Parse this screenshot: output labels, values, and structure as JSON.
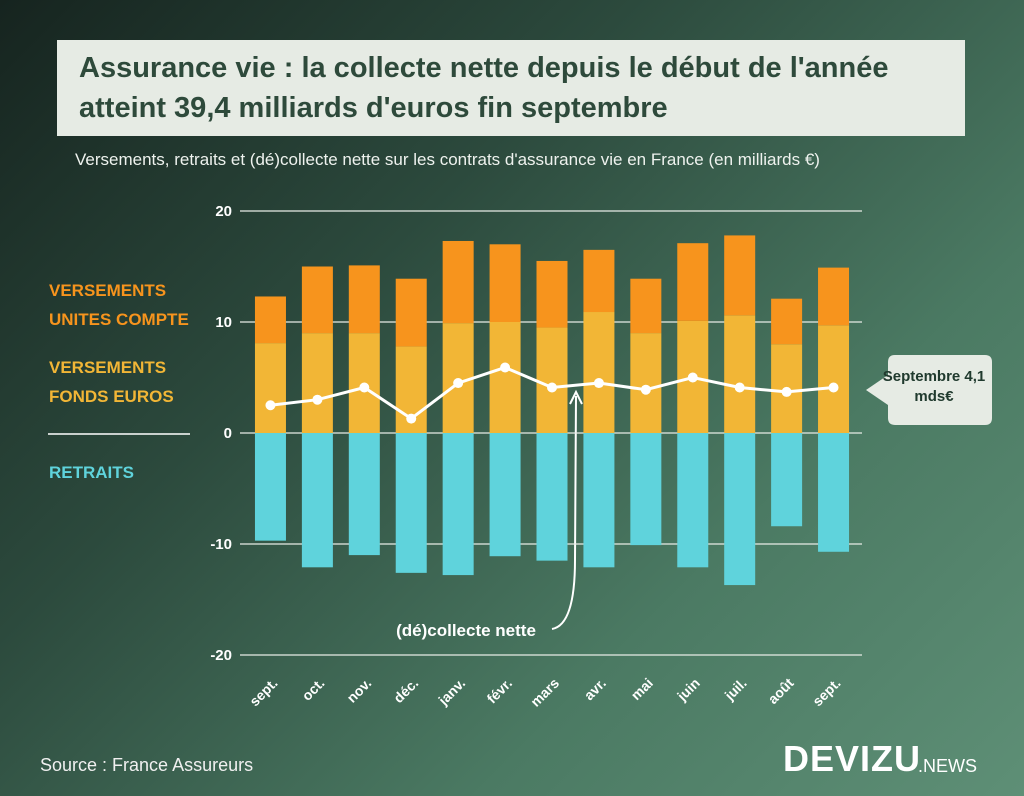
{
  "chart_data": {
    "type": "bar",
    "title": "Assurance vie : la collecte nette depuis le début de l'année atteint 39,4 milliards d'euros fin septembre",
    "subtitle": "Versements, retraits et (dé)collecte nette sur les contrats d'assurance vie en France (en milliards €)",
    "categories": [
      "sept.",
      "oct.",
      "nov.",
      "déc.",
      "janv.",
      "févr.",
      "mars",
      "avr.",
      "mai",
      "juin",
      "juil.",
      "août",
      "sept."
    ],
    "stacked": true,
    "series": [
      {
        "name": "VERSEMENTS FONDS EUROS",
        "color": "#f2b636",
        "values": [
          8.1,
          9.0,
          9.0,
          7.8,
          9.9,
          10.0,
          9.5,
          10.9,
          9.0,
          10.1,
          10.6,
          8.0,
          9.7
        ]
      },
      {
        "name": "VERSEMENTS UNITES COMPTE",
        "color": "#f7941d",
        "values": [
          4.2,
          6.0,
          6.1,
          6.1,
          7.4,
          7.0,
          6.0,
          5.6,
          4.9,
          7.0,
          7.2,
          4.1,
          5.2
        ]
      },
      {
        "name": "RETRAITS",
        "color": "#5fd3dc",
        "values": [
          -9.7,
          -12.1,
          -11.0,
          -12.6,
          -12.8,
          -11.1,
          -11.5,
          -12.1,
          -10.1,
          -12.1,
          -13.7,
          -8.4,
          -10.7
        ]
      },
      {
        "name": "(dé)collecte nette",
        "type": "line",
        "color": "#ffffff",
        "values": [
          2.5,
          3.0,
          4.1,
          1.3,
          4.5,
          5.9,
          4.1,
          4.5,
          3.9,
          5.0,
          4.1,
          3.7,
          4.1
        ]
      }
    ],
    "ylim": [
      -20,
      20
    ],
    "yticks": [
      -20,
      -10,
      0,
      10,
      20
    ],
    "grid": true,
    "annotation": "Septembre 4,1 mds€",
    "source": "Source : France Assureurs",
    "logo": "DEVIZU",
    "logo_suffix": ".NEWS"
  }
}
